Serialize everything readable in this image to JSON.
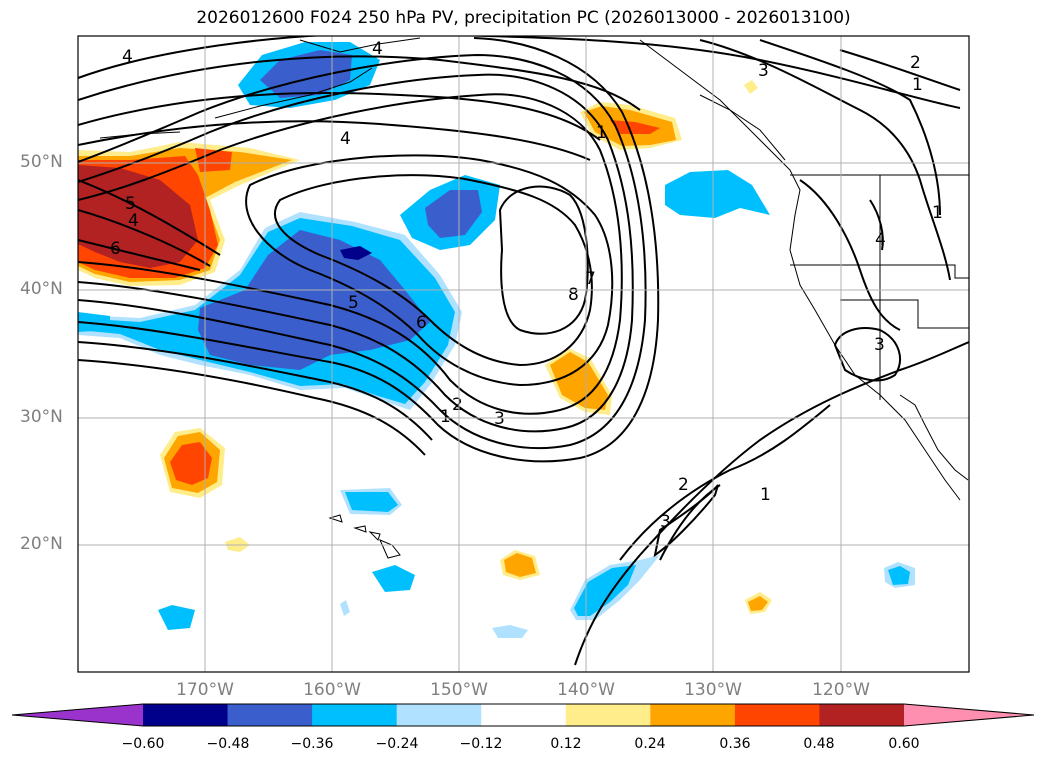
{
  "title": "2026012600 F024 250 hPa PV, precipitation PC (2026013000 - 2026013100)",
  "lat_labels": [
    "50°N",
    "40°N",
    "30°N",
    "20°N"
  ],
  "lon_labels": [
    "170°W",
    "160°W",
    "150°W",
    "140°W",
    "130°W",
    "120°W"
  ],
  "colorbar": {
    "ticks": [
      "−0.60",
      "−0.48",
      "−0.36",
      "−0.24",
      "−0.12",
      "0.12",
      "0.24",
      "0.36",
      "0.48",
      "0.60"
    ],
    "colors": [
      "#9933cc",
      "#00008b",
      "#3a5fcd",
      "#00bfff",
      "#b0e2ff",
      "#ffffff",
      "#ffec8b",
      "#ffa500",
      "#ff4500",
      "#b22222",
      "#ff8fb0"
    ]
  },
  "contour_labels": [
    "4",
    "4",
    "4",
    "5",
    "6",
    "5",
    "6",
    "4",
    "1",
    "3",
    "2",
    "1",
    "1",
    "4",
    "8",
    "7",
    "3",
    "2",
    "1",
    "3",
    "2",
    "3",
    "1"
  ]
}
